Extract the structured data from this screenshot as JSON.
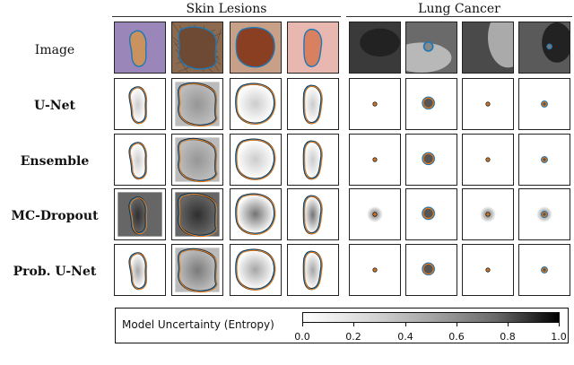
{
  "groups": [
    {
      "label": "Skin Lesions"
    },
    {
      "label": "Lung Cancer"
    }
  ],
  "rows": [
    {
      "label": "Image",
      "kind": "image"
    },
    {
      "label": "U-Net",
      "kind": "method"
    },
    {
      "label": "Ensemble",
      "kind": "method"
    },
    {
      "label": "MC-Dropout",
      "kind": "method"
    },
    {
      "label": "Prob. U-Net",
      "kind": "method"
    }
  ],
  "colorbar": {
    "title": "Model Uncertainty (Entropy)",
    "ticks": [
      "0.0",
      "0.2",
      "0.4",
      "0.6",
      "0.8",
      "1.0"
    ]
  },
  "colors": {
    "ground_truth": "#1f77b4",
    "prediction": "#ff7f0e"
  }
}
